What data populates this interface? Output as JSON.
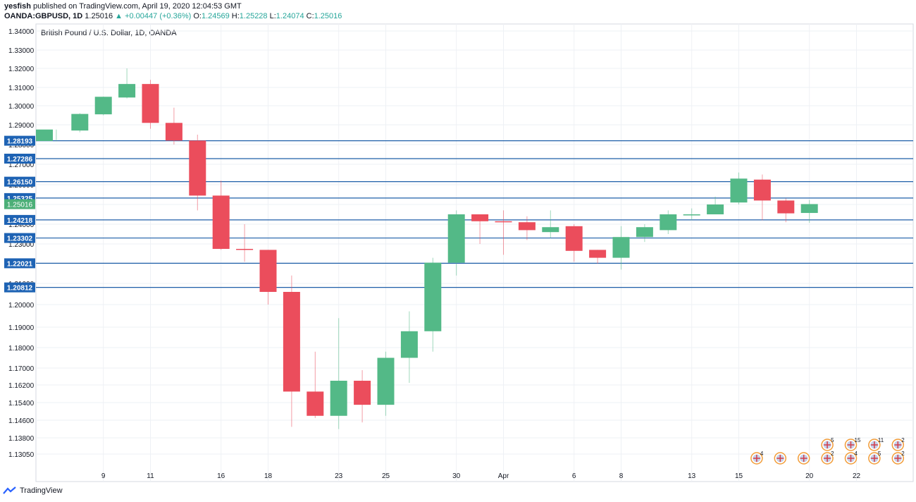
{
  "header": {
    "publisher": "yesfish",
    "published_text": "published on TradingView.com, April 19, 2020 12:04:53 GMT",
    "symbol": "OANDA:GBPUSD, 1D",
    "last": "1.25016",
    "change": "+0.00447 (+0.36%)",
    "o_label": "O:",
    "o": "1.24569",
    "h_label": "H:",
    "h": "1.25228",
    "l_label": "L:",
    "l": "1.24074",
    "c_label": "C:",
    "c": "1.25016"
  },
  "footer": {
    "brand": "TradingView"
  },
  "colors": {
    "up": "#53b987",
    "down": "#eb4d5c",
    "level_line": "#1e5fa8",
    "level_label_bg": "#1e63b4",
    "current_label_bg": "#4caf78",
    "grid": "#eef1f5"
  },
  "chart_data": {
    "type": "candlestick",
    "title": "British Pound / U.S. Dollar, 1D, OANDA",
    "y_axis_ticks": [
      "1.34000",
      "1.33000",
      "1.32000",
      "1.31000",
      "1.30000",
      "1.29000",
      "1.28000",
      "1.27000",
      "1.26000",
      "1.25000",
      "1.24000",
      "1.23000",
      "1.22000",
      "1.21000",
      "1.20000",
      "1.19000",
      "1.18000",
      "1.17000",
      "1.16200",
      "1.15400",
      "1.14600",
      "1.13800",
      "1.13050"
    ],
    "x_axis_ticks": [
      {
        "label": "9",
        "slot": 3
      },
      {
        "label": "11",
        "slot": 5
      },
      {
        "label": "16",
        "slot": 8
      },
      {
        "label": "18",
        "slot": 10
      },
      {
        "label": "23",
        "slot": 13
      },
      {
        "label": "25",
        "slot": 15
      },
      {
        "label": "30",
        "slot": 18
      },
      {
        "label": "Apr",
        "slot": 20
      },
      {
        "label": "6",
        "slot": 23
      },
      {
        "label": "8",
        "slot": 25
      },
      {
        "label": "13",
        "slot": 28
      },
      {
        "label": "15",
        "slot": 30
      },
      {
        "label": "20",
        "slot": 33
      },
      {
        "label": "22",
        "slot": 35
      }
    ],
    "candles": [
      {
        "o": 1.2818,
        "h": 1.2876,
        "l": 1.2816,
        "c": 1.2876
      },
      {
        "o": 1.2871,
        "h": 1.2961,
        "l": 1.2862,
        "c": 1.2957
      },
      {
        "o": 1.2955,
        "h": 1.305,
        "l": 1.295,
        "c": 1.3049
      },
      {
        "o": 1.3045,
        "h": 1.32,
        "l": 1.304,
        "c": 1.3118
      },
      {
        "o": 1.3118,
        "h": 1.314,
        "l": 1.288,
        "c": 1.291
      },
      {
        "o": 1.291,
        "h": 1.299,
        "l": 1.28,
        "c": 1.282
      },
      {
        "o": 1.282,
        "h": 1.285,
        "l": 1.247,
        "c": 1.2545
      },
      {
        "o": 1.2545,
        "h": 1.262,
        "l": 1.227,
        "c": 1.2275
      },
      {
        "o": 1.2275,
        "h": 1.24,
        "l": 1.221,
        "c": 1.227
      },
      {
        "o": 1.227,
        "h": 1.227,
        "l": 1.2,
        "c": 1.206
      },
      {
        "o": 1.206,
        "h": 1.214,
        "l": 1.143,
        "c": 1.159
      },
      {
        "o": 1.159,
        "h": 1.178,
        "l": 1.147,
        "c": 1.148
      },
      {
        "o": 1.148,
        "h": 1.194,
        "l": 1.142,
        "c": 1.164
      },
      {
        "o": 1.164,
        "h": 1.169,
        "l": 1.145,
        "c": 1.153
      },
      {
        "o": 1.153,
        "h": 1.178,
        "l": 1.148,
        "c": 1.175
      },
      {
        "o": 1.175,
        "h": 1.197,
        "l": 1.163,
        "c": 1.188
      },
      {
        "o": 1.188,
        "h": 1.223,
        "l": 1.178,
        "c": 1.2205
      },
      {
        "o": 1.2205,
        "h": 1.247,
        "l": 1.214,
        "c": 1.245
      },
      {
        "o": 1.245,
        "h": 1.245,
        "l": 1.23,
        "c": 1.2415
      },
      {
        "o": 1.2415,
        "h": 1.247,
        "l": 1.2245,
        "c": 1.241
      },
      {
        "o": 1.241,
        "h": 1.244,
        "l": 1.232,
        "c": 1.237
      },
      {
        "o": 1.236,
        "h": 1.247,
        "l": 1.233,
        "c": 1.2385
      },
      {
        "o": 1.239,
        "h": 1.24,
        "l": 1.221,
        "c": 1.2265
      },
      {
        "o": 1.227,
        "h": 1.227,
        "l": 1.22,
        "c": 1.223
      },
      {
        "o": 1.223,
        "h": 1.239,
        "l": 1.217,
        "c": 1.2335
      },
      {
        "o": 1.2335,
        "h": 1.24,
        "l": 1.231,
        "c": 1.2385
      },
      {
        "o": 1.237,
        "h": 1.247,
        "l": 1.235,
        "c": 1.245
      },
      {
        "o": 1.245,
        "h": 1.248,
        "l": 1.242,
        "c": 1.245
      },
      {
        "o": 1.245,
        "h": 1.254,
        "l": 1.245,
        "c": 1.25
      },
      {
        "o": 1.251,
        "h": 1.266,
        "l": 1.25,
        "c": 1.263
      },
      {
        "o": 1.2625,
        "h": 1.265,
        "l": 1.242,
        "c": 1.252
      },
      {
        "o": 1.252,
        "h": 1.253,
        "l": 1.241,
        "c": 1.2455
      },
      {
        "o": 1.2457,
        "h": 1.2523,
        "l": 1.2407,
        "c": 1.2502
      }
    ],
    "levels": [
      "1.28193",
      "1.27286",
      "1.26150",
      "1.25325",
      "1.24218",
      "1.23302",
      "1.22021",
      "1.20812"
    ],
    "current_price": "1.25016",
    "events_row1": [
      {
        "slot": 34,
        "count": "5"
      },
      {
        "slot": 35,
        "count": "15"
      },
      {
        "slot": 36,
        "count": "11"
      },
      {
        "slot": 37,
        "count": "2"
      }
    ],
    "events_row2": [
      {
        "slot": 31,
        "count": "4"
      },
      {
        "slot": 32,
        "count": ""
      },
      {
        "slot": 33,
        "count": ""
      },
      {
        "slot": 34,
        "count": "2"
      },
      {
        "slot": 35,
        "count": "4"
      },
      {
        "slot": 36,
        "count": "5"
      },
      {
        "slot": 37,
        "count": "2"
      }
    ]
  }
}
